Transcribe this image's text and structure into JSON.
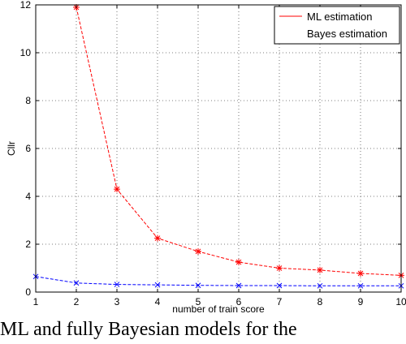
{
  "chart_data": {
    "type": "line",
    "xlabel": "number of train score",
    "ylabel": "Cllr",
    "xlim": [
      1,
      10
    ],
    "ylim": [
      0,
      12
    ],
    "xticks": [
      "1",
      "2",
      "3",
      "4",
      "5",
      "6",
      "7",
      "8",
      "9",
      "10"
    ],
    "yticks": [
      "0",
      "2",
      "4",
      "6",
      "8",
      "10",
      "12"
    ],
    "grid": true,
    "legend_position": "top-right",
    "series": [
      {
        "name": "ML estimation",
        "color": "#ff0000",
        "marker": "star",
        "x": [
          2,
          3,
          4,
          5,
          6,
          7,
          8,
          9,
          10
        ],
        "y": [
          11.9,
          4.3,
          2.25,
          1.7,
          1.25,
          1.0,
          0.92,
          0.78,
          0.7
        ]
      },
      {
        "name": "Bayes estimation",
        "color": "#0000ff",
        "marker": "x",
        "x": [
          1,
          2,
          3,
          4,
          5,
          6,
          7,
          8,
          9,
          10
        ],
        "y": [
          0.65,
          0.38,
          0.32,
          0.3,
          0.28,
          0.27,
          0.27,
          0.26,
          0.26,
          0.26
        ]
      }
    ]
  },
  "caption": "ML and fully Bayesian models for the"
}
